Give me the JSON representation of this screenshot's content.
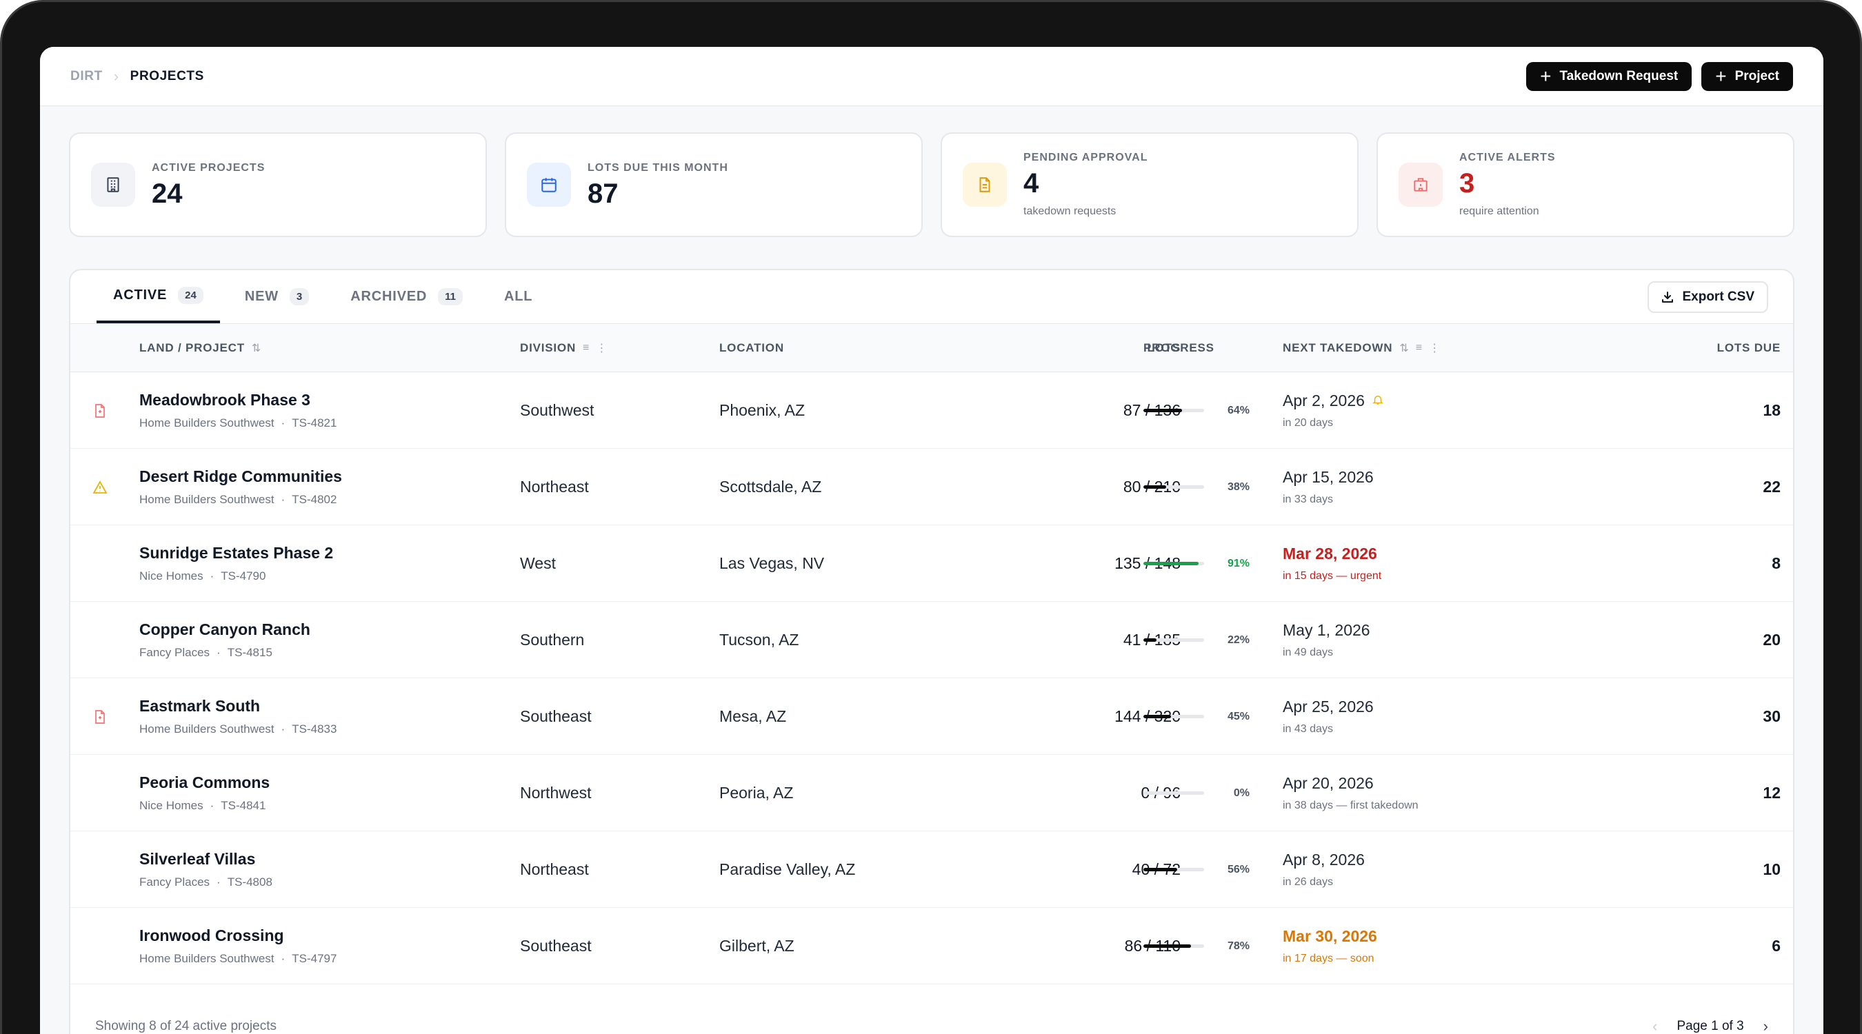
{
  "breadcrumb": {
    "root": "DIRT",
    "current": "PROJECTS"
  },
  "actions": {
    "takedown_label": "Takedown Request",
    "project_label": "Project"
  },
  "stats": [
    {
      "label": "ACTIVE PROJECTS",
      "value": "24",
      "sub": "",
      "icon": "building-icon",
      "tint": "#f1f3f6",
      "color": "#111827"
    },
    {
      "label": "LOTS DUE THIS MONTH",
      "value": "87",
      "sub": "",
      "icon": "calendar-icon",
      "tint": "#eaf1ff",
      "color": "#111827"
    },
    {
      "label": "PENDING APPROVAL",
      "value": "4",
      "sub": "takedown requests",
      "icon": "document-icon",
      "tint": "#fff6e0",
      "color": "#111827"
    },
    {
      "label": "ACTIVE ALERTS",
      "value": "3",
      "sub": "require attention",
      "icon": "alert-building-icon",
      "tint": "#fdeeee",
      "color": "#c81e1e"
    }
  ],
  "tabs": [
    {
      "label": "ACTIVE",
      "count": "24",
      "active": true
    },
    {
      "label": "NEW",
      "count": "3",
      "active": false
    },
    {
      "label": "ARCHIVED",
      "count": "11",
      "active": false
    },
    {
      "label": "ALL",
      "count": "",
      "active": false
    }
  ],
  "export_label": "Export CSV",
  "columns": {
    "name": "LAND / PROJECT",
    "division": "DIVISION",
    "location": "LOCATION",
    "lots": "LOTS",
    "progress": "PROGRESS",
    "next": "NEXT TAKEDOWN",
    "due": "LOTS DUE"
  },
  "rows": [
    {
      "flag": "document-alert-icon",
      "name": "Meadowbrook Phase 3",
      "builder": "Home Builders Southwest",
      "code": "TS-4821",
      "division": "Southwest",
      "location": "Phoenix, AZ",
      "lots": "87 / 136",
      "progress": 64,
      "pct": "64%",
      "date": "Apr 2, 2026",
      "bell": true,
      "rel": "in 20 days",
      "status": "normal",
      "due": "18"
    },
    {
      "flag": "warning-icon",
      "name": "Desert Ridge Communities",
      "builder": "Home Builders Southwest",
      "code": "TS-4802",
      "division": "Northeast",
      "location": "Scottsdale, AZ",
      "lots": "80 / 210",
      "progress": 38,
      "pct": "38%",
      "date": "Apr 15, 2026",
      "bell": false,
      "rel": "in 33 days",
      "status": "normal",
      "due": "22"
    },
    {
      "flag": "",
      "name": "Sunridge Estates Phase 2",
      "builder": "Nice Homes",
      "code": "TS-4790",
      "division": "West",
      "location": "Las Vegas, NV",
      "lots": "135 / 148",
      "progress": 91,
      "pct": "91%",
      "date": "Mar 28, 2026",
      "bell": false,
      "rel": "in 15 days — urgent",
      "status": "urgent",
      "due": "8"
    },
    {
      "flag": "",
      "name": "Copper Canyon Ranch",
      "builder": "Fancy Places",
      "code": "TS-4815",
      "division": "Southern",
      "location": "Tucson, AZ",
      "lots": "41 / 185",
      "progress": 22,
      "pct": "22%",
      "date": "May 1, 2026",
      "bell": false,
      "rel": "in 49 days",
      "status": "normal",
      "due": "20"
    },
    {
      "flag": "document-alert-icon",
      "name": "Eastmark South",
      "builder": "Home Builders Southwest",
      "code": "TS-4833",
      "division": "Southeast",
      "location": "Mesa, AZ",
      "lots": "144 / 320",
      "progress": 45,
      "pct": "45%",
      "date": "Apr 25, 2026",
      "bell": false,
      "rel": "in 43 days",
      "status": "normal",
      "due": "30"
    },
    {
      "flag": "",
      "name": "Peoria Commons",
      "builder": "Nice Homes",
      "code": "TS-4841",
      "division": "Northwest",
      "location": "Peoria, AZ",
      "lots": "0 / 96",
      "progress": 0,
      "pct": "0%",
      "date": "Apr 20, 2026",
      "bell": false,
      "rel": "in 38 days — first takedown",
      "status": "normal",
      "due": "12"
    },
    {
      "flag": "",
      "name": "Silverleaf Villas",
      "builder": "Fancy Places",
      "code": "TS-4808",
      "division": "Northeast",
      "location": "Paradise Valley, AZ",
      "lots": "40 / 72",
      "progress": 56,
      "pct": "56%",
      "date": "Apr 8, 2026",
      "bell": false,
      "rel": "in 26 days",
      "status": "normal",
      "due": "10"
    },
    {
      "flag": "",
      "name": "Ironwood Crossing",
      "builder": "Home Builders Southwest",
      "code": "TS-4797",
      "division": "Southeast",
      "location": "Gilbert, AZ",
      "lots": "86 / 110",
      "progress": 78,
      "pct": "78%",
      "date": "Mar 30, 2026",
      "bell": false,
      "rel": "in 17 days — soon",
      "status": "soon",
      "due": "6"
    }
  ],
  "footer": {
    "showing": "Showing 8 of 24 active projects",
    "page": "Page 1 of 3"
  },
  "colors": {
    "urgent": "#c81e1e",
    "urgent_bar": "#16a34a",
    "soon": "#d97706",
    "bell": "#eab308",
    "warning": "#eab308",
    "doc_alert": "#f87171"
  }
}
